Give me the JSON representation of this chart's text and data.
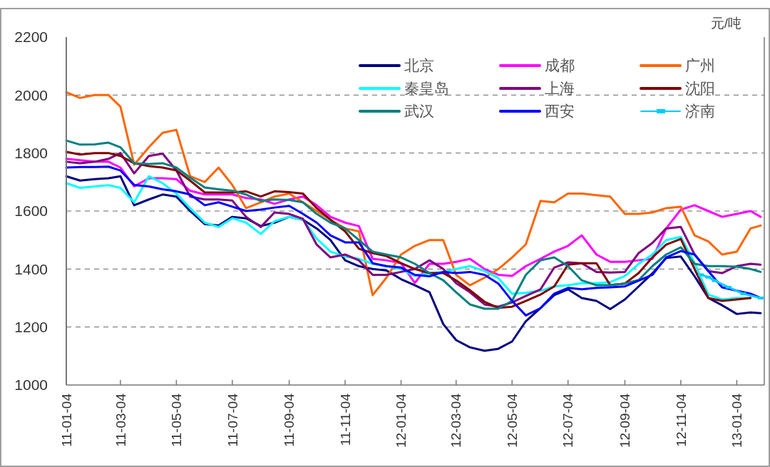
{
  "chart_data": {
    "type": "line",
    "ylabel": "元/吨",
    "xlim": [
      "2011-01-04",
      "2013-02-03"
    ],
    "ylim": [
      1000,
      2200
    ],
    "yticks": [
      1000,
      1200,
      1400,
      1600,
      1800,
      2000,
      2200
    ],
    "xticks": [
      {
        "value": "2011-01-04",
        "label": "11-01-04"
      },
      {
        "value": "2011-03-04",
        "label": "11-03-04"
      },
      {
        "value": "2011-05-04",
        "label": "11-05-04"
      },
      {
        "value": "2011-07-04",
        "label": "11-07-04"
      },
      {
        "value": "2011-09-04",
        "label": "11-09-04"
      },
      {
        "value": "2011-11-04",
        "label": "11-11-04"
      },
      {
        "value": "2012-01-04",
        "label": "12-01-04"
      },
      {
        "value": "2012-03-04",
        "label": "12-03-04"
      },
      {
        "value": "2012-05-04",
        "label": "12-05-04"
      },
      {
        "value": "2012-07-04",
        "label": "12-07-04"
      },
      {
        "value": "2012-09-04",
        "label": "12-09-04"
      },
      {
        "value": "2012-11-04",
        "label": "12-11-04"
      },
      {
        "value": "2013-01-04",
        "label": "13-01-04"
      }
    ],
    "grid": "y",
    "legend": "top right",
    "line_style": "solid",
    "x": [
      "2011-01-04",
      "2011-01-19",
      "2011-02-04",
      "2011-02-19",
      "2011-03-04",
      "2011-03-19",
      "2011-04-04",
      "2011-04-19",
      "2011-05-04",
      "2011-05-19",
      "2011-06-04",
      "2011-06-19",
      "2011-07-04",
      "2011-07-19",
      "2011-08-04",
      "2011-08-19",
      "2011-09-04",
      "2011-09-19",
      "2011-10-04",
      "2011-10-19",
      "2011-11-04",
      "2011-11-19",
      "2011-12-04",
      "2011-12-19",
      "2012-01-04",
      "2012-01-19",
      "2012-02-04",
      "2012-02-19",
      "2012-03-04",
      "2012-03-19",
      "2012-04-04",
      "2012-04-19",
      "2012-05-04",
      "2012-05-19",
      "2012-06-04",
      "2012-06-19",
      "2012-07-04",
      "2012-07-19",
      "2012-08-04",
      "2012-08-19",
      "2012-09-04",
      "2012-09-19",
      "2012-10-04",
      "2012-10-19",
      "2012-11-04",
      "2012-11-19",
      "2012-12-04",
      "2012-12-19",
      "2013-01-04",
      "2013-01-19",
      "2013-01-30"
    ],
    "series": [
      {
        "name": "北京",
        "color": "#000080",
        "values": [
          1720,
          1705,
          1710,
          1713,
          1720,
          1620,
          1640,
          1657,
          1650,
          1600,
          1555,
          1550,
          1580,
          1575,
          1548,
          1560,
          1580,
          1570,
          1540,
          1500,
          1430,
          1410,
          1400,
          1395,
          1365,
          1344,
          1320,
          1210,
          1155,
          1130,
          1118,
          1125,
          1150,
          1220,
          1265,
          1310,
          1330,
          1300,
          1290,
          1262,
          1295,
          1340,
          1385,
          1438,
          1443,
          1375,
          1300,
          1275,
          1245,
          1250,
          1248
        ]
      },
      {
        "name": "成都",
        "color": "#ff00ff",
        "values": [
          1780,
          1775,
          1770,
          1770,
          1750,
          1685,
          1713,
          1713,
          1710,
          1670,
          1657,
          1657,
          1657,
          1645,
          1640,
          1625,
          1640,
          1650,
          1620,
          1580,
          1560,
          1548,
          1435,
          1430,
          1420,
          1352,
          1418,
          1418,
          1425,
          1435,
          1400,
          1380,
          1376,
          1410,
          1435,
          1460,
          1480,
          1516,
          1450,
          1425,
          1425,
          1430,
          1435,
          1540,
          1605,
          1620,
          1600,
          1580,
          1590,
          1600,
          1580
        ]
      },
      {
        "name": "广州",
        "color": "#ff6600",
        "values": [
          2010,
          1990,
          2000,
          2000,
          1960,
          1760,
          1820,
          1870,
          1880,
          1720,
          1700,
          1750,
          1690,
          1610,
          1630,
          1650,
          1660,
          1630,
          1600,
          1570,
          1540,
          1530,
          1310,
          1370,
          1450,
          1480,
          1500,
          1500,
          1380,
          1344,
          1370,
          1400,
          1440,
          1485,
          1635,
          1630,
          1660,
          1660,
          1655,
          1650,
          1590,
          1590,
          1595,
          1610,
          1615,
          1516,
          1495,
          1450,
          1460,
          1540,
          1550
        ]
      },
      {
        "name": "秦皇岛",
        "color": "#00ffff",
        "values": [
          1696,
          1680,
          1685,
          1689,
          1680,
          1630,
          1720,
          1696,
          1660,
          1610,
          1560,
          1545,
          1575,
          1560,
          1521,
          1565,
          1580,
          1570,
          1505,
          1460,
          1443,
          1435,
          1418,
          1410,
          1400,
          1376,
          1386,
          1390,
          1400,
          1410,
          1393,
          1369,
          1315,
          1318,
          1325,
          1340,
          1344,
          1351,
          1351,
          1355,
          1376,
          1418,
          1450,
          1500,
          1511,
          1420,
          1312,
          1295,
          1300,
          1300,
          null
        ]
      },
      {
        "name": "上海",
        "color": "#800080",
        "values": [
          1770,
          1765,
          1770,
          1780,
          1800,
          1730,
          1790,
          1798,
          1740,
          1650,
          1640,
          1640,
          1636,
          1580,
          1545,
          1595,
          1590,
          1573,
          1484,
          1440,
          1450,
          1430,
          1380,
          1380,
          1390,
          1400,
          1430,
          1400,
          1351,
          1320,
          1278,
          1270,
          1285,
          1307,
          1330,
          1405,
          1423,
          1420,
          1390,
          1388,
          1390,
          1455,
          1490,
          1540,
          1545,
          1450,
          1393,
          1386,
          1410,
          1418,
          1415
        ]
      },
      {
        "name": "沈阳",
        "color": "#800000",
        "values": [
          1804,
          1795,
          1800,
          1800,
          1790,
          1765,
          1755,
          1750,
          1740,
          1705,
          1664,
          1664,
          1664,
          1668,
          1650,
          1668,
          1665,
          1660,
          1610,
          1570,
          1530,
          1470,
          1455,
          1445,
          1420,
          1400,
          1386,
          1386,
          1361,
          1327,
          1287,
          1266,
          1270,
          1290,
          1312,
          1340,
          1415,
          1420,
          1420,
          1345,
          1350,
          1386,
          1440,
          1484,
          1504,
          1400,
          1300,
          1290,
          1295,
          1300,
          null
        ]
      },
      {
        "name": "武汉",
        "color": "#008080",
        "values": [
          1843,
          1829,
          1830,
          1836,
          1820,
          1765,
          1762,
          1765,
          1750,
          1715,
          1681,
          1675,
          1670,
          1657,
          1635,
          1640,
          1638,
          1630,
          1590,
          1560,
          1540,
          1500,
          1460,
          1450,
          1440,
          1418,
          1386,
          1361,
          1320,
          1278,
          1263,
          1263,
          1290,
          1380,
          1430,
          1440,
          1410,
          1361,
          1344,
          1344,
          1350,
          1362,
          1410,
          1450,
          1475,
          1418,
          1410,
          1410,
          1408,
          1400,
          1390
        ]
      },
      {
        "name": "西安",
        "color": "#0000ff",
        "values": [
          1750,
          1752,
          1752,
          1753,
          1740,
          1690,
          1685,
          1675,
          1668,
          1657,
          1620,
          1630,
          1615,
          1600,
          1605,
          1612,
          1618,
          1590,
          1560,
          1516,
          1492,
          1492,
          1420,
          1410,
          1405,
          1380,
          1375,
          1390,
          1386,
          1390,
          1380,
          1350,
          1290,
          1240,
          1265,
          1315,
          1335,
          1330,
          1335,
          1337,
          1340,
          1360,
          1380,
          1440,
          1462,
          1450,
          1393,
          1337,
          1325,
          1315,
          1300
        ]
      },
      {
        "name": "济南",
        "color": "#00ccff",
        "marker": "square",
        "x": [
          "2012-11-26",
          "2012-12-04",
          "2012-12-11",
          "2012-12-26",
          "2013-01-11",
          "2013-01-30"
        ],
        "values": [
          1380,
          1372,
          1360,
          1337,
          1315,
          1300
        ]
      }
    ]
  }
}
